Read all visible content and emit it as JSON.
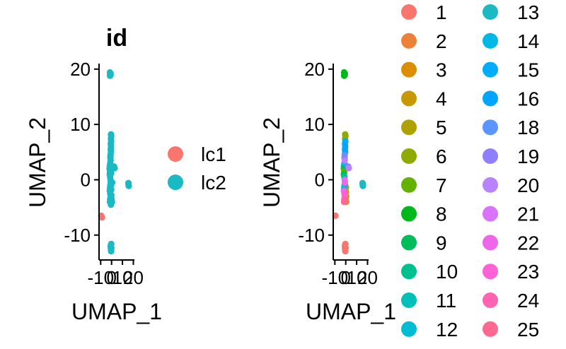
{
  "chart_data": [
    {
      "type": "scatter",
      "title": "id",
      "xlabel": "UMAP_1",
      "ylabel": "UMAP_2",
      "xlim": [
        -11.5,
        21
      ],
      "ylim": [
        -14.5,
        21
      ],
      "xticks": [
        -10,
        0,
        10,
        20
      ],
      "xtick_labels": [
        "-10",
        "0",
        "10",
        "20"
      ],
      "yticks": [
        -10,
        0,
        10,
        20
      ],
      "yticks_labels": [
        "-10",
        "0",
        "10",
        "20"
      ],
      "legend_position": "right",
      "legend_layout": "one column",
      "series": [
        {
          "name": "lc1",
          "color": "#F8766D",
          "points": [
            [
              -9.5,
              -6.5
            ],
            [
              -8.8,
              -6.8
            ]
          ]
        },
        {
          "name": "lc2",
          "color": "#1AB9C3",
          "points": [
            [
              -1.5,
              19.4
            ],
            [
              -1.2,
              19.0
            ],
            [
              -0.9,
              19.2
            ],
            [
              -1.0,
              18.9
            ],
            [
              -1.4,
              18.8
            ],
            [
              -0.5,
              8.2
            ],
            [
              -0.3,
              7.9
            ],
            [
              -0.6,
              7.4
            ],
            [
              -0.4,
              6.9
            ],
            [
              -0.7,
              6.5
            ],
            [
              -0.5,
              6.0
            ],
            [
              -0.8,
              5.5
            ],
            [
              -0.6,
              5.0
            ],
            [
              -1.0,
              4.5
            ],
            [
              -1.1,
              4.0
            ],
            [
              -0.9,
              3.5
            ],
            [
              -1.2,
              3.0
            ],
            [
              -1.6,
              2.5
            ],
            [
              -1.8,
              2.0
            ],
            [
              -1.5,
              1.5
            ],
            [
              -1.7,
              1.0
            ],
            [
              -1.3,
              0.5
            ],
            [
              -1.0,
              0.0
            ],
            [
              -0.8,
              -0.5
            ],
            [
              -1.1,
              -1.0
            ],
            [
              -1.4,
              -1.5
            ],
            [
              -1.6,
              -2.0
            ],
            [
              -1.2,
              -2.5
            ],
            [
              -0.9,
              -3.0
            ],
            [
              -1.3,
              -3.5
            ],
            [
              -1.5,
              -4.0
            ],
            [
              -0.6,
              -4.5
            ],
            [
              -0.5,
              -1.0
            ],
            [
              -0.3,
              -1.8
            ],
            [
              -0.2,
              -2.8
            ],
            [
              0.0,
              -3.5
            ],
            [
              0.3,
              -4.0
            ],
            [
              0.5,
              -0.5
            ],
            [
              -0.4,
              1.2
            ],
            [
              0.2,
              2.3
            ],
            [
              2.3,
              2.4
            ],
            [
              2.8,
              2.1
            ],
            [
              1.5,
              2.3
            ],
            [
              -0.3,
              -11.6
            ],
            [
              -0.7,
              -11.9
            ],
            [
              -0.2,
              -12.3
            ],
            [
              -0.5,
              -12.6
            ],
            [
              -0.8,
              -12.2
            ],
            [
              -0.4,
              -12.9
            ],
            [
              15.5,
              -0.6
            ],
            [
              15.8,
              -1.1
            ],
            [
              15.6,
              -0.9
            ]
          ]
        }
      ]
    },
    {
      "type": "scatter",
      "title": "",
      "xlabel": "UMAP_1",
      "ylabel": "UMAP_2",
      "xlim": [
        -11.5,
        21
      ],
      "ylim": [
        -14.5,
        21
      ],
      "xticks": [
        -10,
        0,
        10,
        20
      ],
      "xtick_labels": [
        "-10",
        "0",
        "10",
        "20"
      ],
      "yticks": [
        -10,
        0,
        10,
        20
      ],
      "yticks_labels": [
        "-10",
        "0",
        "10",
        "20"
      ],
      "legend_position": "right",
      "legend_layout": "two columns",
      "series": [
        {
          "name": "1",
          "color": "#F8766D",
          "points": [
            [
              -9.5,
              -6.5
            ],
            [
              -0.3,
              -11.6
            ],
            [
              -0.7,
              -11.9
            ],
            [
              -0.2,
              -12.3
            ],
            [
              -0.5,
              -12.6
            ],
            [
              -0.8,
              -12.2
            ],
            [
              -0.4,
              -12.9
            ]
          ]
        },
        {
          "name": "2",
          "color": "#EC8239",
          "points": [
            [
              -0.5,
              -1.0
            ],
            [
              -0.2,
              -2.8
            ],
            [
              0.0,
              -3.5
            ],
            [
              0.3,
              -4.0
            ]
          ]
        },
        {
          "name": "3",
          "color": "#DB8E00",
          "points": [
            [
              -0.3,
              -1.8
            ],
            [
              0.1,
              -2.2
            ]
          ]
        },
        {
          "name": "4",
          "color": "#C79800",
          "points": [
            [
              0.4,
              -3.0
            ],
            [
              0.2,
              -1.4
            ]
          ]
        },
        {
          "name": "5",
          "color": "#AEA200",
          "points": [
            [
              -0.5,
              -3.2
            ]
          ]
        },
        {
          "name": "6",
          "color": "#8FAA00",
          "points": [
            [
              -0.5,
              8.2
            ],
            [
              -0.3,
              7.9
            ],
            [
              -0.6,
              7.4
            ]
          ]
        },
        {
          "name": "7",
          "color": "#64B200",
          "points": [
            [
              -1.8,
              2.0
            ],
            [
              -1.5,
              1.5
            ]
          ]
        },
        {
          "name": "8",
          "color": "#00B81B",
          "points": [
            [
              -1.5,
              19.4
            ],
            [
              -1.2,
              19.0
            ],
            [
              -0.9,
              19.2
            ],
            [
              -1.0,
              18.9
            ],
            [
              -1.4,
              18.8
            ]
          ]
        },
        {
          "name": "9",
          "color": "#00BD5C",
          "points": [
            [
              -1.6,
              2.5
            ],
            [
              -1.7,
              1.0
            ]
          ]
        },
        {
          "name": "10",
          "color": "#00C08E",
          "points": [
            [
              -1.3,
              0.5
            ]
          ]
        },
        {
          "name": "11",
          "color": "#00C1B7",
          "points": [
            [
              -1.1,
              -1.0
            ]
          ]
        },
        {
          "name": "12",
          "color": "#00BDD4",
          "points": [
            [
              -1.4,
              -1.5
            ]
          ]
        },
        {
          "name": "13",
          "color": "#1AB9C3",
          "points": [
            [
              15.5,
              -0.6
            ],
            [
              15.8,
              -1.1
            ],
            [
              15.6,
              -0.9
            ]
          ]
        },
        {
          "name": "14",
          "color": "#00B8E5",
          "points": [
            [
              -1.2,
              3.0
            ],
            [
              -0.8,
              5.5
            ]
          ]
        },
        {
          "name": "15",
          "color": "#00ACFC",
          "points": [
            [
              -0.4,
              6.9
            ],
            [
              -0.7,
              6.5
            ]
          ]
        },
        {
          "name": "16",
          "color": "#00A5FF",
          "points": [
            [
              -0.5,
              6.0
            ],
            [
              -0.6,
              5.0
            ]
          ]
        },
        {
          "name": "18",
          "color": "#5B95FF",
          "points": [
            [
              -1.0,
              4.5
            ]
          ]
        },
        {
          "name": "19",
          "color": "#8F7FFF",
          "points": [
            [
              -1.1,
              4.0
            ],
            [
              2.3,
              2.4
            ]
          ]
        },
        {
          "name": "20",
          "color": "#B983FF",
          "points": [
            [
              2.8,
              2.1
            ],
            [
              -0.9,
              3.5
            ]
          ]
        },
        {
          "name": "21",
          "color": "#DB72FB",
          "points": [
            [
              -1.0,
              0.0
            ]
          ]
        },
        {
          "name": "22",
          "color": "#F066EA",
          "points": [
            [
              -0.8,
              -0.5
            ],
            [
              -1.6,
              -2.0
            ]
          ]
        },
        {
          "name": "23",
          "color": "#FC61D5",
          "points": [
            [
              -1.2,
              -2.5
            ],
            [
              -0.9,
              -3.0
            ]
          ]
        },
        {
          "name": "24",
          "color": "#FF64B0",
          "points": [
            [
              -1.3,
              -3.5
            ]
          ]
        },
        {
          "name": "25",
          "color": "#FF6890",
          "points": [
            [
              -1.5,
              -4.0
            ]
          ]
        }
      ]
    }
  ]
}
